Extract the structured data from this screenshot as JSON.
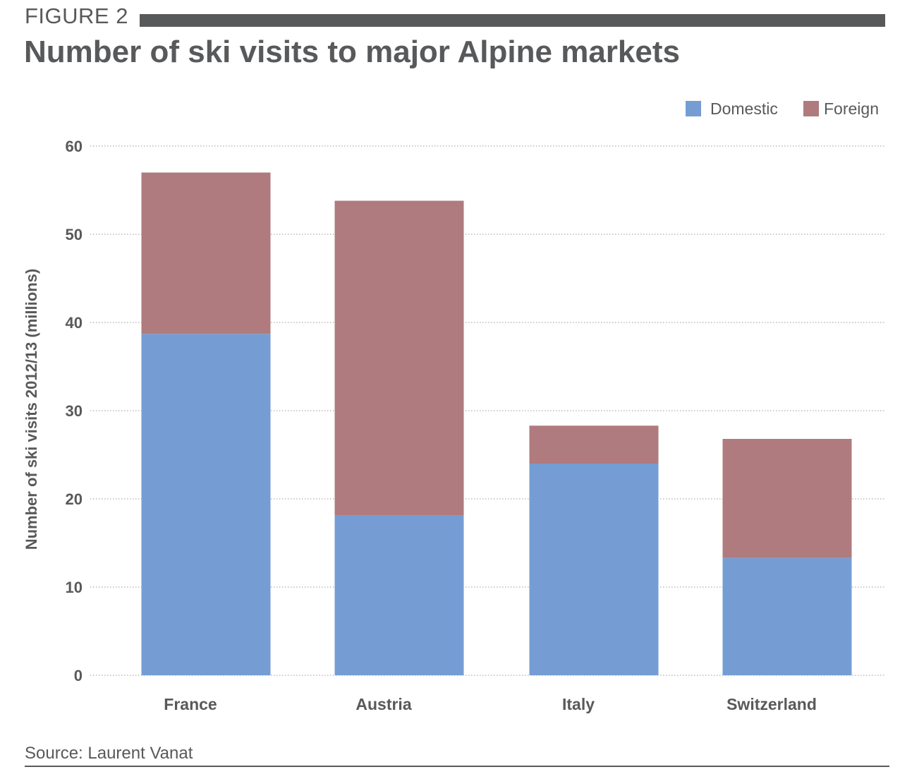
{
  "header": {
    "figure_label": "FIGURE 2",
    "title": "Number of ski visits to major Alpine markets"
  },
  "footer": {
    "source": "Source: Laurent Vanat"
  },
  "colors": {
    "domestic": "#759dd3",
    "foreign": "#b07b7e",
    "text": "#58595b",
    "grid": "#9a9a9a"
  },
  "chart_data": {
    "type": "bar",
    "stacked": true,
    "categories": [
      "France",
      "Austria",
      "Italy",
      "Switzerland"
    ],
    "series": [
      {
        "name": "Domestic",
        "values": [
          38.7,
          18.1,
          24.0,
          13.3
        ]
      },
      {
        "name": "Foreign",
        "values": [
          18.3,
          35.7,
          4.3,
          13.5
        ]
      }
    ],
    "ylabel": "Number of ski visits 2012/13 (millions)",
    "xlabel": "",
    "ylim": [
      0,
      60
    ],
    "yticks": [
      0,
      10,
      20,
      30,
      40,
      50,
      60
    ],
    "grid": true,
    "legend_position": "top-right"
  }
}
